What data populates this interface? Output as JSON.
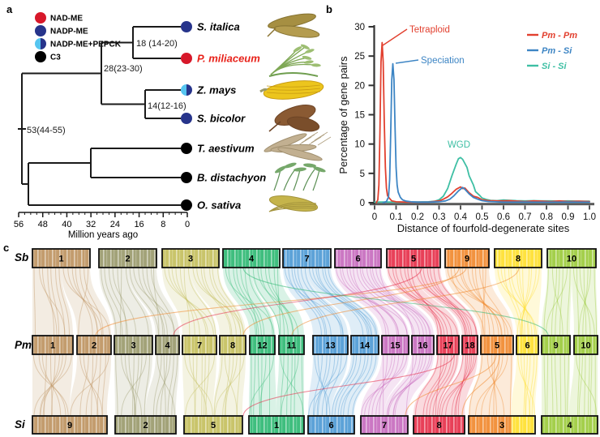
{
  "figure": {
    "panel_a_label": "a",
    "panel_b_label": "b",
    "panel_c_label": "c"
  },
  "panel_a": {
    "legend": [
      {
        "label": "NAD-ME",
        "color": "#D7182A"
      },
      {
        "label": "NADP-ME",
        "color": "#27348B"
      },
      {
        "label": "NADP-ME+PEPCK",
        "color": "#27348B",
        "color2": "#56C5F0"
      },
      {
        "label": "C3",
        "color": "#000000"
      }
    ],
    "species": [
      {
        "name": "S. italica",
        "dot": "#27348B",
        "text_color": "#000000",
        "plant": "italica"
      },
      {
        "name": "P. miliaceum",
        "dot": "#D7182A",
        "text_color": "#E8221A",
        "plant": "miliaceum"
      },
      {
        "name": "Z. mays",
        "dot": "#27348B",
        "dot_left": "#56C5F0",
        "text_color": "#000000",
        "plant": "mays"
      },
      {
        "name": "S. bicolor",
        "dot": "#27348B",
        "text_color": "#000000",
        "plant": "bicolor"
      },
      {
        "name": "T. aestivum",
        "dot": "#000000",
        "text_color": "#000000",
        "plant": "aestivum"
      },
      {
        "name": "B. distachyon",
        "dot": "#000000",
        "text_color": "#000000",
        "plant": "distachyon"
      },
      {
        "name": "O. sativa",
        "dot": "#000000",
        "text_color": "#000000",
        "plant": "sativa"
      }
    ],
    "nodes": {
      "n18": "18 (14-20)",
      "n28": "28(23-30)",
      "n14": "14(12-16)",
      "n53": "53(44-55)"
    },
    "axis": {
      "ticks": [
        "56",
        "48",
        "40",
        "32",
        "24",
        "16",
        "8",
        "0"
      ],
      "label": "Million years ago"
    }
  },
  "chart_data": {
    "type": "line",
    "title": "",
    "xlabel": "Distance of fourfold-degenerate sites",
    "ylabel": "Percentage of gene pairs",
    "xlim": [
      0,
      1.0
    ],
    "ylim": [
      0,
      30
    ],
    "xticks": [
      "0",
      "0.1",
      "0.2",
      "0.3",
      "0.4",
      "0.5",
      "0.6",
      "0.7",
      "0.8",
      "0.9",
      "1.0"
    ],
    "yticks": [
      0,
      5,
      10,
      15,
      20,
      25,
      30
    ],
    "grid": false,
    "legend_position": "top-right",
    "series": [
      {
        "name": "Pm - Pm",
        "color": "#E2402F",
        "points": [
          [
            0.008,
            0
          ],
          [
            0.015,
            0.5
          ],
          [
            0.02,
            3
          ],
          [
            0.025,
            12
          ],
          [
            0.03,
            24
          ],
          [
            0.035,
            27.3
          ],
          [
            0.04,
            24
          ],
          [
            0.045,
            14
          ],
          [
            0.05,
            6
          ],
          [
            0.055,
            2.5
          ],
          [
            0.06,
            1.2
          ],
          [
            0.07,
            0.7
          ],
          [
            0.08,
            0.3
          ],
          [
            0.1,
            0.15
          ],
          [
            0.15,
            0.1
          ],
          [
            0.2,
            0.1
          ],
          [
            0.25,
            0.1
          ],
          [
            0.3,
            0.3
          ],
          [
            0.32,
            0.6
          ],
          [
            0.34,
            1
          ],
          [
            0.36,
            1.6
          ],
          [
            0.38,
            2.3
          ],
          [
            0.4,
            2.7
          ],
          [
            0.41,
            2.4
          ],
          [
            0.42,
            2.5
          ],
          [
            0.44,
            1.7
          ],
          [
            0.46,
            1.1
          ],
          [
            0.48,
            0.9
          ],
          [
            0.5,
            0.5
          ],
          [
            0.53,
            0.35
          ],
          [
            0.57,
            0.3
          ],
          [
            0.6,
            0.3
          ],
          [
            0.63,
            0.35
          ],
          [
            0.67,
            0.25
          ],
          [
            0.7,
            0.2
          ],
          [
            0.74,
            0.3
          ],
          [
            0.78,
            0.25
          ],
          [
            0.82,
            0.2
          ],
          [
            0.86,
            0.3
          ],
          [
            0.9,
            0.2
          ],
          [
            0.95,
            0.25
          ],
          [
            1,
            0.2
          ]
        ]
      },
      {
        "name": "Pm - Si",
        "color": "#3D85C4",
        "points": [
          [
            0.04,
            0
          ],
          [
            0.055,
            0.2
          ],
          [
            0.065,
            1
          ],
          [
            0.07,
            4
          ],
          [
            0.075,
            12
          ],
          [
            0.08,
            21
          ],
          [
            0.085,
            23.7
          ],
          [
            0.09,
            21
          ],
          [
            0.095,
            13
          ],
          [
            0.1,
            6
          ],
          [
            0.105,
            3
          ],
          [
            0.11,
            1.8
          ],
          [
            0.12,
            0.9
          ],
          [
            0.13,
            0.5
          ],
          [
            0.14,
            0.35
          ],
          [
            0.15,
            0.25
          ],
          [
            0.17,
            0.15
          ],
          [
            0.2,
            0.1
          ],
          [
            0.25,
            0.1
          ],
          [
            0.3,
            0.15
          ],
          [
            0.33,
            0.3
          ],
          [
            0.35,
            0.6
          ],
          [
            0.37,
            1.2
          ],
          [
            0.39,
            2
          ],
          [
            0.41,
            2.6
          ],
          [
            0.42,
            2.3
          ],
          [
            0.44,
            1.5
          ],
          [
            0.46,
            0.9
          ],
          [
            0.48,
            0.6
          ],
          [
            0.5,
            0.35
          ],
          [
            0.53,
            0.2
          ],
          [
            0.56,
            0.15
          ],
          [
            0.6,
            0.1
          ],
          [
            0.7,
            0.1
          ],
          [
            0.8,
            0.08
          ],
          [
            0.9,
            0.1
          ],
          [
            1,
            0.08
          ]
        ]
      },
      {
        "name": "Si - Si",
        "color": "#3EBFA4",
        "points": [
          [
            0,
            0.1
          ],
          [
            0.05,
            0.12
          ],
          [
            0.1,
            0.1
          ],
          [
            0.15,
            0.1
          ],
          [
            0.2,
            0.12
          ],
          [
            0.25,
            0.15
          ],
          [
            0.28,
            0.25
          ],
          [
            0.3,
            0.5
          ],
          [
            0.32,
            1.1
          ],
          [
            0.34,
            2.4
          ],
          [
            0.36,
            4.6
          ],
          [
            0.38,
            6.6
          ],
          [
            0.39,
            7.5
          ],
          [
            0.4,
            7.7
          ],
          [
            0.41,
            7.4
          ],
          [
            0.43,
            6
          ],
          [
            0.44,
            4.6
          ],
          [
            0.46,
            3
          ],
          [
            0.47,
            1.9
          ],
          [
            0.49,
            1.2
          ],
          [
            0.5,
            0.8
          ],
          [
            0.52,
            0.55
          ],
          [
            0.54,
            0.4
          ],
          [
            0.57,
            0.35
          ],
          [
            0.6,
            0.45
          ],
          [
            0.63,
            0.4
          ],
          [
            0.66,
            0.35
          ],
          [
            0.7,
            0.3
          ],
          [
            0.74,
            0.35
          ],
          [
            0.78,
            0.3
          ],
          [
            0.82,
            0.3
          ],
          [
            0.86,
            0.25
          ],
          [
            0.9,
            0.3
          ],
          [
            0.95,
            0.25
          ],
          [
            1,
            0.25
          ]
        ]
      }
    ],
    "annotations": [
      {
        "text": "Tetraploid",
        "color": "#E2402F",
        "x": 0.035,
        "y": 27.3
      },
      {
        "text": "Speciation",
        "color": "#3D85C4",
        "x": 0.085,
        "y": 23.7
      },
      {
        "text": "WGD",
        "color": "#3EBFA4",
        "x": 0.4,
        "y": 7.7
      }
    ]
  },
  "panel_c": {
    "row_labels": [
      "Sb",
      "Pm",
      "Si"
    ],
    "families": {
      "tan": "#BE9461",
      "olive": "#9A9A6D",
      "yolive": "#C4BF5D",
      "green": "#2FB873",
      "blue": "#4E9AD5",
      "magenta": "#C76BBE",
      "red": "#E6304A",
      "orange": "#F1892E",
      "yellow": "#FFDF2E",
      "ygreen": "#9CCB3C"
    },
    "rows": {
      "sb": {
        "y": 307,
        "h": 23,
        "boxes": [
          {
            "id": "1",
            "family": "tan",
            "x": 40,
            "w": 71
          },
          {
            "id": "2",
            "family": "olive",
            "x": 122,
            "w": 71
          },
          {
            "id": "3",
            "family": "yolive",
            "x": 200,
            "w": 70
          },
          {
            "id": "4",
            "family": "green",
            "x": 275,
            "w": 70
          },
          {
            "id": "7",
            "family": "blue",
            "x": 349,
            "w": 59
          },
          {
            "id": "6",
            "family": "magenta",
            "x": 413,
            "w": 57
          },
          {
            "id": "5",
            "family": "red",
            "x": 477,
            "w": 66
          },
          {
            "id": "9",
            "family": "orange",
            "x": 549,
            "w": 54
          },
          {
            "id": "8",
            "family": "yellow",
            "x": 610,
            "w": 58
          },
          {
            "id": "10",
            "family": "ygreen",
            "x": 675,
            "w": 60
          }
        ]
      },
      "pm": {
        "y": 414,
        "h": 23,
        "boxes": [
          {
            "id": "1",
            "family": "tan",
            "x": 40,
            "w": 50
          },
          {
            "id": "2",
            "family": "tan",
            "x": 95,
            "w": 42
          },
          {
            "id": "3",
            "family": "olive",
            "x": 141,
            "w": 47
          },
          {
            "id": "4",
            "family": "olive",
            "x": 192,
            "w": 29
          },
          {
            "id": "7",
            "family": "yolive",
            "x": 225,
            "w": 42
          },
          {
            "id": "8",
            "family": "yolive",
            "x": 271,
            "w": 32
          },
          {
            "id": "12",
            "family": "green",
            "x": 308,
            "w": 31
          },
          {
            "id": "11",
            "family": "green",
            "x": 344,
            "w": 31
          },
          {
            "id": "13",
            "family": "blue",
            "x": 386,
            "w": 43
          },
          {
            "id": "14",
            "family": "blue",
            "x": 433,
            "w": 34
          },
          {
            "id": "15",
            "family": "magenta",
            "x": 471,
            "w": 33
          },
          {
            "id": "16",
            "family": "magenta",
            "x": 508,
            "w": 27
          },
          {
            "id": "17",
            "family": "red",
            "x": 539,
            "w": 27
          },
          {
            "id": "18",
            "family": "red",
            "x": 570,
            "w": 19
          },
          {
            "id": "5",
            "family": "orange",
            "x": 593,
            "w": 40
          },
          {
            "id": "6",
            "family": "yellow",
            "x": 637,
            "w": 27
          },
          {
            "id": "9",
            "family": "ygreen",
            "x": 668,
            "w": 35
          },
          {
            "id": "10",
            "family": "ygreen",
            "x": 708,
            "w": 29
          }
        ]
      },
      "si": {
        "y": 513,
        "h": 22,
        "boxes": [
          {
            "id": "9",
            "family": "tan",
            "x": 40,
            "w": 92
          },
          {
            "id": "2",
            "family": "olive",
            "x": 142,
            "w": 75
          },
          {
            "id": "5",
            "family": "yolive",
            "x": 227,
            "w": 72
          },
          {
            "id": "1",
            "family": "green",
            "x": 307,
            "w": 68
          },
          {
            "id": "6",
            "family": "blue",
            "x": 380,
            "w": 57
          },
          {
            "id": "7",
            "family": "magenta",
            "x": 445,
            "w": 58
          },
          {
            "id": "8",
            "family": "red",
            "x": 510,
            "w": 63
          },
          {
            "id": "3",
            "family": "orange",
            "family2": "yellow",
            "split": 0.64,
            "x": 578,
            "w": 82
          },
          {
            "id": "4",
            "family": "ygreen",
            "x": 668,
            "w": 69
          }
        ]
      }
    },
    "links_top": [
      [
        "1",
        "1"
      ],
      [
        "1",
        "2"
      ],
      [
        "2",
        "3"
      ],
      [
        "2",
        "4"
      ],
      [
        "3",
        "7"
      ],
      [
        "3",
        "8"
      ],
      [
        "4",
        "12"
      ],
      [
        "4",
        "11"
      ],
      [
        "7",
        "13"
      ],
      [
        "7",
        "14"
      ],
      [
        "6",
        "15"
      ],
      [
        "6",
        "16"
      ],
      [
        "5",
        "17"
      ],
      [
        "5",
        "18"
      ],
      [
        "9",
        "5"
      ],
      [
        "8",
        "6"
      ],
      [
        "10",
        "9"
      ],
      [
        "10",
        "10"
      ]
    ],
    "links_bottom": [
      [
        "1",
        "9"
      ],
      [
        "2",
        "9"
      ],
      [
        "3",
        "2"
      ],
      [
        "4",
        "2"
      ],
      [
        "7",
        "5"
      ],
      [
        "8",
        "5"
      ],
      [
        "12",
        "1"
      ],
      [
        "11",
        "1"
      ],
      [
        "13",
        "6"
      ],
      [
        "14",
        "6"
      ],
      [
        "15",
        "7"
      ],
      [
        "16",
        "7"
      ],
      [
        "17",
        "8"
      ],
      [
        "18",
        "8"
      ],
      [
        "5",
        "3"
      ],
      [
        "6",
        "3"
      ],
      [
        "9",
        "4"
      ],
      [
        "10",
        "4"
      ]
    ]
  }
}
